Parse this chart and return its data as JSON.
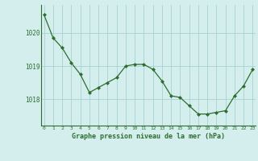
{
  "x": [
    0,
    1,
    2,
    3,
    4,
    5,
    6,
    7,
    8,
    9,
    10,
    11,
    12,
    13,
    14,
    15,
    16,
    17,
    18,
    19,
    20,
    21,
    22,
    23
  ],
  "y": [
    1020.55,
    1019.85,
    1019.55,
    1019.1,
    1018.75,
    1018.2,
    1018.35,
    1018.5,
    1018.65,
    1019.0,
    1019.05,
    1019.05,
    1018.9,
    1018.55,
    1018.1,
    1018.05,
    1017.8,
    1017.55,
    1017.55,
    1017.6,
    1017.65,
    1018.1,
    1018.4,
    1018.9
  ],
  "line_color": "#2d6e2d",
  "marker_color": "#2d6e2d",
  "bg_color": "#d4eeee",
  "grid_color": "#a0cccc",
  "axis_color": "#2d6e2d",
  "xlabel": "Graphe pression niveau de la mer (hPa)",
  "yticks": [
    1018,
    1019,
    1020
  ],
  "ylim": [
    1017.2,
    1020.85
  ],
  "xlim": [
    -0.3,
    23.3
  ]
}
